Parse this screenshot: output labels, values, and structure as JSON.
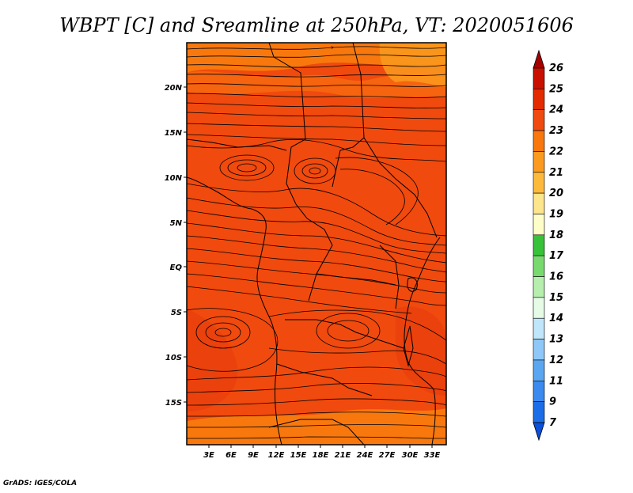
{
  "title": "WBPT [C] and Sreamline at 250hPa, VT: 2020051606",
  "credit": "GrADS: IGES/COLA",
  "map": {
    "lat_labels": [
      "20N",
      "15N",
      "10N",
      "5N",
      "EQ",
      "5S",
      "10S",
      "15S"
    ],
    "lon_labels": [
      "3E",
      "6E",
      "9E",
      "12E",
      "15E",
      "18E",
      "21E",
      "24E",
      "27E",
      "30E",
      "33E"
    ],
    "colors": {
      "field_main": "#f04a0e",
      "field_warm_band": "#f8780e",
      "field_light": "#fa9a1e",
      "field_dark": "#e0360a"
    }
  },
  "colorbar": {
    "levels": [
      "26",
      "25",
      "24",
      "23",
      "22",
      "21",
      "20",
      "19",
      "18",
      "17",
      "16",
      "15",
      "14",
      "13",
      "12",
      "11",
      "9",
      "7"
    ],
    "colors": [
      "#a50000",
      "#c80f00",
      "#e42a00",
      "#f04a0e",
      "#f8780e",
      "#fa9a1e",
      "#fcba3c",
      "#fde58c",
      "#fffec8",
      "#38c23a",
      "#78da6e",
      "#b6eeae",
      "#e6fae6",
      "#bfe6fa",
      "#8ec8f8",
      "#5aa6f0",
      "#3c8af0",
      "#1c6ee8",
      "#0a50d8"
    ]
  }
}
